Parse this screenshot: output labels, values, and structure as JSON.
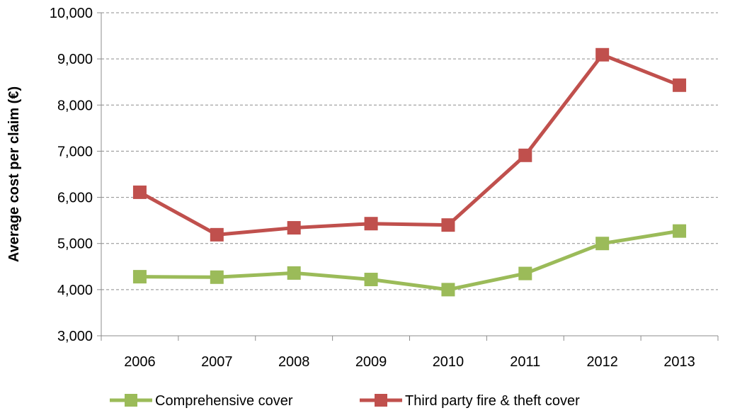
{
  "chart_data": {
    "type": "line",
    "title": "",
    "xlabel": "",
    "ylabel": "Average cost per claim (€)",
    "categories": [
      "2006",
      "2007",
      "2008",
      "2009",
      "2010",
      "2011",
      "2012",
      "2013"
    ],
    "ylim": [
      3000,
      10000
    ],
    "yticks": [
      3000,
      4000,
      5000,
      6000,
      7000,
      8000,
      9000,
      10000
    ],
    "ytick_labels": [
      "3,000",
      "4,000",
      "5,000",
      "6,000",
      "7,000",
      "8,000",
      "9,000",
      "10,000"
    ],
    "grid": true,
    "grid_style": "dashed",
    "legend_position": "bottom",
    "series": [
      {
        "name": "Comprehensive cover",
        "color": "#9BBB59",
        "marker": "square",
        "values": [
          4280,
          4270,
          4360,
          4220,
          4000,
          4350,
          5000,
          5270
        ]
      },
      {
        "name": "Third party fire & theft cover",
        "color": "#C0504D",
        "marker": "square",
        "values": [
          6110,
          5190,
          5340,
          5430,
          5400,
          6910,
          9090,
          8430
        ]
      }
    ]
  }
}
